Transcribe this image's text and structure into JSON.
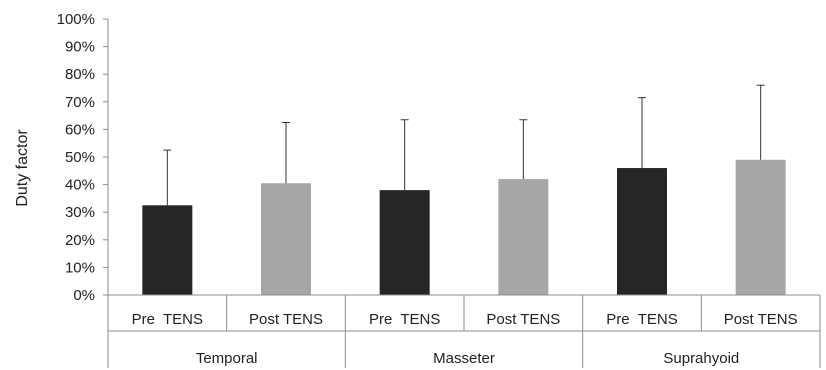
{
  "chart_data": {
    "type": "bar",
    "ylabel": "Duty factor",
    "ylim": [
      0,
      100
    ],
    "y_ticks": [
      "0%",
      "10%",
      "20%",
      "30%",
      "40%",
      "50%",
      "60%",
      "70%",
      "80%",
      "90%",
      "100%"
    ],
    "y_tick_values": [
      0,
      10,
      20,
      30,
      40,
      50,
      60,
      70,
      80,
      90,
      100
    ],
    "grid": false,
    "groups": [
      "Temporal",
      "Masseter",
      "Suprahyoid"
    ],
    "categories": [
      "Pre  TENS",
      "Post TENS",
      "Pre  TENS",
      "Post TENS",
      "Pre  TENS",
      "Post TENS"
    ],
    "values": [
      32.5,
      40.5,
      38,
      42,
      46,
      49
    ],
    "error_upper": [
      52.5,
      62.5,
      63.5,
      63.5,
      71.5,
      76
    ],
    "bar_colors": [
      "#262626",
      "#a6a6a6",
      "#262626",
      "#a6a6a6",
      "#262626",
      "#a6a6a6"
    ]
  }
}
